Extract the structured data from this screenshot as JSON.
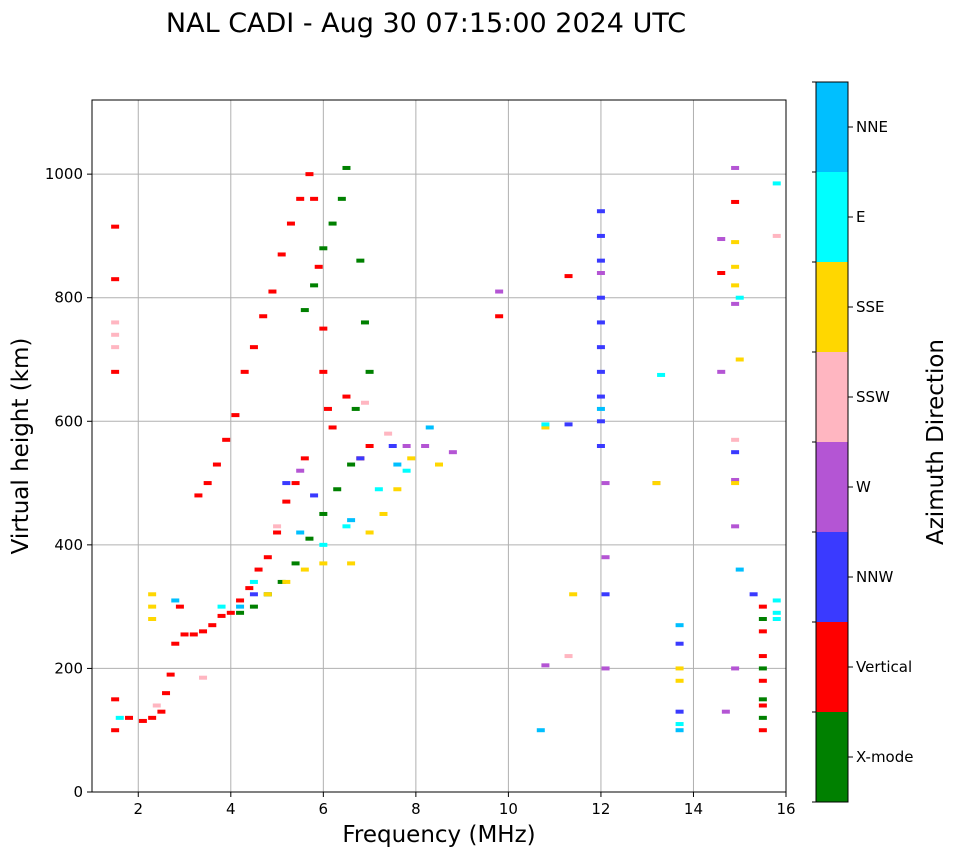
{
  "chart_data": {
    "type": "scatter",
    "title": "NAL CADI - Aug 30 07:15:00 2024 UTC",
    "xlabel": "Frequency (MHz)",
    "ylabel": "Virtual height (km)",
    "xlim": [
      1.0,
      16.0
    ],
    "ylim": [
      0,
      1120
    ],
    "xticks": [
      2,
      4,
      6,
      8,
      10,
      12,
      14,
      16
    ],
    "yticks": [
      0,
      200,
      400,
      600,
      800,
      1000
    ],
    "grid": true,
    "colorbar": {
      "label": "Azimuth Direction",
      "categories": [
        {
          "name": "X-mode",
          "color": "#008000"
        },
        {
          "name": "Vertical",
          "color": "#ff0000"
        },
        {
          "name": "NNW",
          "color": "#3a3aff"
        },
        {
          "name": "W",
          "color": "#b455d4"
        },
        {
          "name": "SSW",
          "color": "#ffb6c1"
        },
        {
          "name": "SSE",
          "color": "#ffd700"
        },
        {
          "name": "E",
          "color": "#00ffff"
        },
        {
          "name": "NNE",
          "color": "#00bfff"
        }
      ]
    },
    "series": [
      {
        "name": "Vertical",
        "points": [
          [
            1.5,
            100
          ],
          [
            1.5,
            150
          ],
          [
            1.5,
            680
          ],
          [
            1.5,
            830
          ],
          [
            1.5,
            915
          ],
          [
            1.8,
            120
          ],
          [
            2.1,
            115
          ],
          [
            2.3,
            120
          ],
          [
            2.5,
            130
          ],
          [
            2.6,
            160
          ],
          [
            2.7,
            190
          ],
          [
            2.8,
            240
          ],
          [
            2.9,
            300
          ],
          [
            3.0,
            255
          ],
          [
            3.2,
            255
          ],
          [
            3.4,
            260
          ],
          [
            3.6,
            270
          ],
          [
            3.8,
            285
          ],
          [
            4.0,
            290
          ],
          [
            4.2,
            310
          ],
          [
            4.4,
            330
          ],
          [
            4.6,
            360
          ],
          [
            4.8,
            380
          ],
          [
            5.0,
            420
          ],
          [
            5.2,
            470
          ],
          [
            5.4,
            500
          ],
          [
            5.6,
            540
          ],
          [
            3.3,
            480
          ],
          [
            3.5,
            500
          ],
          [
            3.7,
            530
          ],
          [
            3.9,
            570
          ],
          [
            4.1,
            610
          ],
          [
            4.3,
            680
          ],
          [
            4.5,
            720
          ],
          [
            4.7,
            770
          ],
          [
            4.9,
            810
          ],
          [
            5.1,
            870
          ],
          [
            5.3,
            920
          ],
          [
            5.5,
            960
          ],
          [
            5.7,
            1000
          ],
          [
            5.9,
            850
          ],
          [
            6.0,
            750
          ],
          [
            6.0,
            680
          ],
          [
            6.1,
            620
          ],
          [
            6.2,
            590
          ],
          [
            5.8,
            960
          ],
          [
            6.5,
            640
          ],
          [
            6.8,
            540
          ],
          [
            7.0,
            560
          ],
          [
            9.8,
            770
          ],
          [
            11.3,
            835
          ],
          [
            14.6,
            840
          ],
          [
            14.9,
            955
          ],
          [
            15.5,
            300
          ],
          [
            15.5,
            260
          ],
          [
            15.5,
            220
          ],
          [
            15.5,
            180
          ],
          [
            15.5,
            140
          ],
          [
            15.5,
            100
          ]
        ]
      },
      {
        "name": "X-mode",
        "points": [
          [
            4.2,
            290
          ],
          [
            4.5,
            300
          ],
          [
            4.8,
            320
          ],
          [
            5.1,
            340
          ],
          [
            5.4,
            370
          ],
          [
            5.7,
            410
          ],
          [
            6.0,
            450
          ],
          [
            6.3,
            490
          ],
          [
            6.6,
            530
          ],
          [
            5.6,
            780
          ],
          [
            5.8,
            820
          ],
          [
            6.0,
            880
          ],
          [
            6.2,
            920
          ],
          [
            6.4,
            960
          ],
          [
            6.5,
            1010
          ],
          [
            6.8,
            860
          ],
          [
            6.9,
            760
          ],
          [
            7.0,
            680
          ],
          [
            6.7,
            620
          ],
          [
            15.5,
            280
          ],
          [
            15.5,
            200
          ],
          [
            15.5,
            150
          ],
          [
            15.5,
            120
          ]
        ]
      },
      {
        "name": "NNW",
        "points": [
          [
            4.5,
            320
          ],
          [
            5.2,
            500
          ],
          [
            5.8,
            480
          ],
          [
            6.8,
            540
          ],
          [
            7.5,
            560
          ],
          [
            11.3,
            595
          ],
          [
            12.0,
            940
          ],
          [
            12.0,
            900
          ],
          [
            12.0,
            860
          ],
          [
            12.0,
            800
          ],
          [
            12.0,
            760
          ],
          [
            12.0,
            720
          ],
          [
            12.0,
            680
          ],
          [
            12.0,
            640
          ],
          [
            12.0,
            600
          ],
          [
            12.0,
            560
          ],
          [
            12.1,
            320
          ],
          [
            13.7,
            240
          ],
          [
            13.7,
            130
          ],
          [
            14.9,
            550
          ],
          [
            15.3,
            320
          ]
        ]
      },
      {
        "name": "W",
        "points": [
          [
            5.5,
            520
          ],
          [
            7.8,
            560
          ],
          [
            8.2,
            560
          ],
          [
            8.8,
            550
          ],
          [
            9.8,
            810
          ],
          [
            10.8,
            205
          ],
          [
            12.0,
            840
          ],
          [
            12.1,
            500
          ],
          [
            12.1,
            380
          ],
          [
            12.1,
            200
          ],
          [
            13.2,
            500
          ],
          [
            14.6,
            895
          ],
          [
            14.6,
            680
          ],
          [
            14.7,
            130
          ],
          [
            14.9,
            1010
          ],
          [
            14.9,
            790
          ],
          [
            14.9,
            505
          ],
          [
            14.9,
            430
          ],
          [
            14.9,
            200
          ]
        ]
      },
      {
        "name": "SSW",
        "points": [
          [
            1.5,
            760
          ],
          [
            1.5,
            740
          ],
          [
            1.5,
            720
          ],
          [
            2.4,
            140
          ],
          [
            3.4,
            185
          ],
          [
            5.0,
            430
          ],
          [
            6.9,
            630
          ],
          [
            7.4,
            580
          ],
          [
            11.3,
            220
          ],
          [
            14.9,
            570
          ],
          [
            15.8,
            900
          ]
        ]
      },
      {
        "name": "SSE",
        "points": [
          [
            2.3,
            320
          ],
          [
            2.3,
            300
          ],
          [
            2.3,
            280
          ],
          [
            4.8,
            320
          ],
          [
            5.2,
            340
          ],
          [
            5.6,
            360
          ],
          [
            6.0,
            370
          ],
          [
            6.6,
            370
          ],
          [
            7.0,
            420
          ],
          [
            7.3,
            450
          ],
          [
            7.6,
            490
          ],
          [
            7.9,
            540
          ],
          [
            8.5,
            530
          ],
          [
            10.8,
            590
          ],
          [
            11.4,
            320
          ],
          [
            13.2,
            500
          ],
          [
            13.7,
            200
          ],
          [
            13.7,
            180
          ],
          [
            14.9,
            890
          ],
          [
            14.9,
            850
          ],
          [
            14.9,
            820
          ],
          [
            15.0,
            700
          ],
          [
            14.9,
            500
          ]
        ]
      },
      {
        "name": "E",
        "points": [
          [
            1.6,
            120
          ],
          [
            3.8,
            300
          ],
          [
            4.5,
            340
          ],
          [
            6.0,
            400
          ],
          [
            6.5,
            430
          ],
          [
            7.2,
            490
          ],
          [
            7.8,
            520
          ],
          [
            10.8,
            595
          ],
          [
            13.3,
            675
          ],
          [
            13.7,
            110
          ],
          [
            15.0,
            800
          ],
          [
            15.8,
            310
          ],
          [
            15.8,
            290
          ],
          [
            15.8,
            280
          ],
          [
            15.8,
            985
          ]
        ]
      },
      {
        "name": "NNE",
        "points": [
          [
            2.8,
            310
          ],
          [
            4.2,
            300
          ],
          [
            5.5,
            420
          ],
          [
            6.6,
            440
          ],
          [
            7.6,
            530
          ],
          [
            8.3,
            590
          ],
          [
            10.7,
            100
          ],
          [
            12.0,
            620
          ],
          [
            13.7,
            270
          ],
          [
            13.7,
            100
          ],
          [
            15.0,
            360
          ]
        ]
      }
    ]
  }
}
